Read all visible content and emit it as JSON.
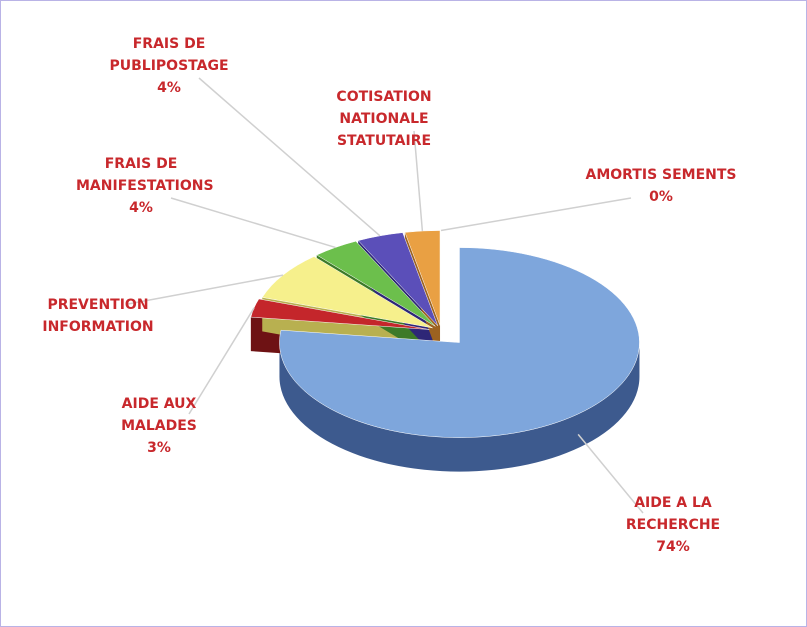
{
  "chart_data": {
    "type": "pie3d",
    "categories": [
      "AIDE A LA RECHERCHE",
      "AIDE AUX MALADES",
      "PREVENTION INFORMATION",
      "FRAIS DE MANIFESTATIONS",
      "FRAIS DE PUBLIPOSTAGE",
      "COTISATION NATIONALE STATUTAIRE",
      "AMORTIS SEMENTS"
    ],
    "values": [
      74,
      3,
      8,
      4,
      4,
      3,
      0
    ],
    "value_labels": [
      "74%",
      "3%",
      null,
      "4%",
      "4%",
      null,
      "0%"
    ],
    "colors": [
      "#7ea6dc",
      "#c4262b",
      "#f6f08c",
      "#6cbf4c",
      "#5b4fb9",
      "#e9a043",
      "#8e5353"
    ],
    "side_colors": [
      "#3d5a8e",
      "#6e1214",
      "#b8b050",
      "#3d7a28",
      "#2e2777",
      "#9c6220",
      "#5a2e2e"
    ]
  }
}
